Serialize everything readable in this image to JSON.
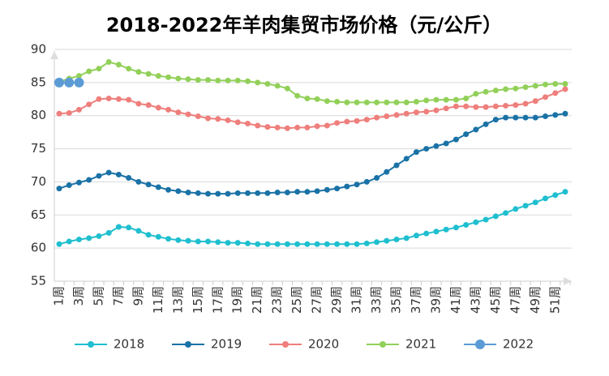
{
  "chart_data": {
    "type": "line",
    "title": "2018-2022年羊肉集贸市场价格（元/公斤）",
    "categories": [
      "1周",
      null,
      "3周",
      null,
      "5周",
      null,
      "7周",
      null,
      "9周",
      null,
      "11周",
      null,
      "13周",
      null,
      "15周",
      null,
      "17周",
      null,
      "19周",
      null,
      "21周",
      null,
      "23周",
      null,
      "25周",
      null,
      "27周",
      null,
      "29周",
      null,
      "31周",
      null,
      "33周",
      null,
      "35周",
      null,
      "37周",
      null,
      "39周",
      null,
      "41周",
      null,
      "43周",
      null,
      "45周",
      null,
      "47周",
      null,
      "49周",
      null,
      "51周",
      null
    ],
    "series": [
      {
        "name": "2018",
        "color": "#1fbfcf",
        "values": [
          60.6,
          61.0,
          61.3,
          61.5,
          61.8,
          62.3,
          63.2,
          63.1,
          62.6,
          62.0,
          61.7,
          61.4,
          61.2,
          61.1,
          61.0,
          61.0,
          60.9,
          60.8,
          60.8,
          60.7,
          60.6,
          60.6,
          60.6,
          60.6,
          60.6,
          60.6,
          60.6,
          60.6,
          60.6,
          60.6,
          60.6,
          60.7,
          60.9,
          61.1,
          61.3,
          61.5,
          61.9,
          62.2,
          62.5,
          62.8,
          63.1,
          63.5,
          63.9,
          64.3,
          64.8,
          65.3,
          65.9,
          66.4,
          66.9,
          67.5,
          68.0,
          68.5
        ]
      },
      {
        "name": "2019",
        "color": "#1a72a6",
        "values": [
          69.0,
          69.5,
          69.9,
          70.3,
          70.9,
          71.4,
          71.1,
          70.6,
          70.0,
          69.6,
          69.2,
          68.8,
          68.6,
          68.4,
          68.3,
          68.2,
          68.2,
          68.2,
          68.3,
          68.3,
          68.3,
          68.3,
          68.4,
          68.4,
          68.5,
          68.5,
          68.6,
          68.8,
          69.0,
          69.3,
          69.6,
          70.0,
          70.6,
          71.5,
          72.5,
          73.5,
          74.5,
          75.0,
          75.4,
          75.8,
          76.4,
          77.2,
          77.9,
          78.7,
          79.4,
          79.7,
          79.7,
          79.7,
          79.7,
          79.9,
          80.1,
          80.3
        ]
      },
      {
        "name": "2020",
        "color": "#ee7f7c",
        "values": [
          80.3,
          80.4,
          80.9,
          81.7,
          82.5,
          82.6,
          82.5,
          82.4,
          81.8,
          81.6,
          81.2,
          80.9,
          80.5,
          80.2,
          79.9,
          79.6,
          79.5,
          79.3,
          79.0,
          78.8,
          78.5,
          78.3,
          78.2,
          78.1,
          78.2,
          78.2,
          78.4,
          78.5,
          78.9,
          79.1,
          79.2,
          79.4,
          79.7,
          79.9,
          80.1,
          80.3,
          80.5,
          80.6,
          80.8,
          81.1,
          81.4,
          81.4,
          81.3,
          81.3,
          81.4,
          81.5,
          81.6,
          81.8,
          82.2,
          82.8,
          83.4,
          84.0
        ]
      },
      {
        "name": "2021",
        "color": "#92d05a",
        "values": [
          85.1,
          85.6,
          86.0,
          86.7,
          87.1,
          88.1,
          87.7,
          87.1,
          86.6,
          86.3,
          86.0,
          85.8,
          85.6,
          85.5,
          85.4,
          85.4,
          85.3,
          85.3,
          85.3,
          85.2,
          85.0,
          84.8,
          84.5,
          84.1,
          83.0,
          82.6,
          82.5,
          82.2,
          82.1,
          82.0,
          82.0,
          82.0,
          82.0,
          82.0,
          82.0,
          82.0,
          82.1,
          82.3,
          82.4,
          82.4,
          82.4,
          82.6,
          83.3,
          83.6,
          83.8,
          84.0,
          84.1,
          84.3,
          84.5,
          84.7,
          84.8,
          84.8
        ]
      },
      {
        "name": "2022",
        "color": "#5b9bd5",
        "values": [
          85,
          85,
          85,
          null,
          null,
          null,
          null,
          null,
          null,
          null,
          null,
          null,
          null,
          null,
          null,
          null,
          null,
          null,
          null,
          null,
          null,
          null,
          null,
          null,
          null,
          null,
          null,
          null,
          null,
          null,
          null,
          null,
          null,
          null,
          null,
          null,
          null,
          null,
          null,
          null,
          null,
          null,
          null,
          null,
          null,
          null,
          null,
          null,
          null,
          null,
          null,
          null
        ]
      }
    ],
    "ylim": [
      55,
      90
    ],
    "yticks": [
      55,
      60,
      65,
      70,
      75,
      80,
      85,
      90
    ],
    "grid": true,
    "legend": "bottom"
  }
}
